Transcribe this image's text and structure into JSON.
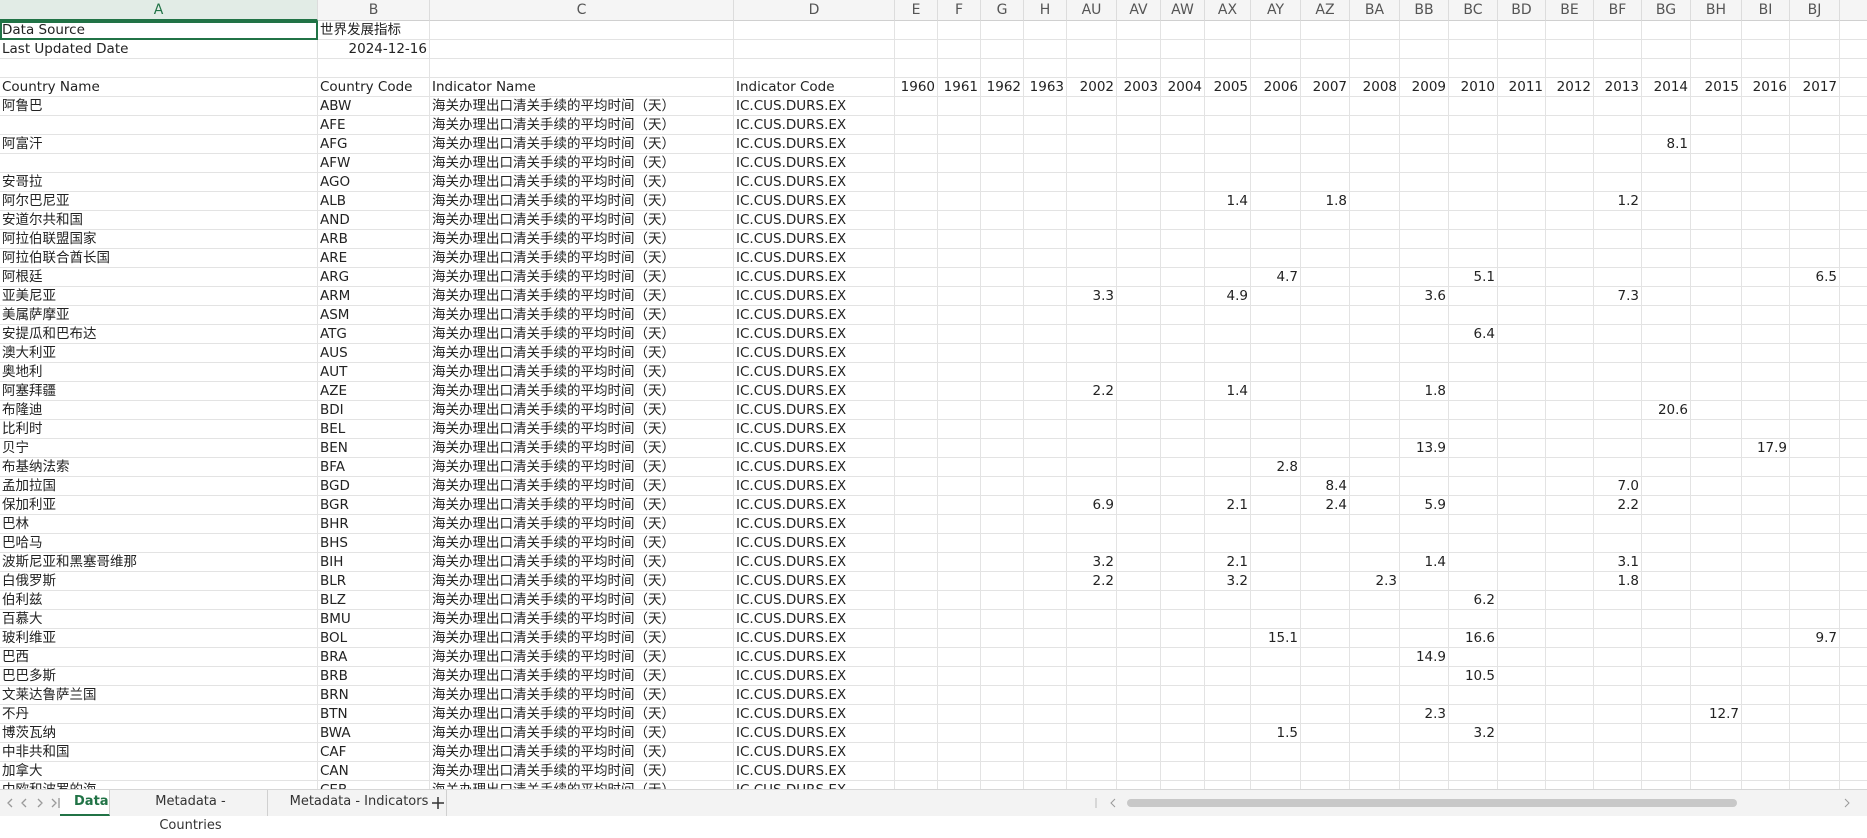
{
  "columns": [
    "A",
    "B",
    "C",
    "D",
    "E",
    "F",
    "G",
    "H",
    "AU",
    "AV",
    "AW",
    "AX",
    "AY",
    "AZ",
    "BA",
    "BB",
    "BC",
    "BD",
    "BE",
    "BF",
    "BG",
    "BH",
    "BI",
    "BJ"
  ],
  "meta": [
    {
      "label": "Data Source",
      "value": "世界发展指标"
    },
    {
      "label": "Last Updated Date",
      "value": "2024-12-16"
    }
  ],
  "header": {
    "country_name": "Country Name",
    "country_code": "Country Code",
    "indicator_name": "Indicator Name",
    "indicator_code": "Indicator Code",
    "years": [
      1960,
      1961,
      1962,
      1963,
      2002,
      2003,
      2004,
      2005,
      2006,
      2007,
      2008,
      2009,
      2010,
      2011,
      2012,
      2013,
      2014,
      2015,
      2016,
      2017
    ]
  },
  "rows": [
    {
      "name": "阿鲁巴",
      "code": "ABW",
      "indicator": "海关办理出口清关手续的平均时间（天）",
      "indicator_code": "IC.CUS.DURS.EX",
      "values": {}
    },
    {
      "code": "AFE",
      "indicator": "海关办理出口清关手续的平均时间（天）",
      "indicator_code": "IC.CUS.DURS.EX",
      "values": {}
    },
    {
      "name": "阿富汗",
      "code": "AFG",
      "indicator": "海关办理出口清关手续的平均时间（天）",
      "indicator_code": "IC.CUS.DURS.EX",
      "values": {
        "2014": "8.1"
      }
    },
    {
      "code": "AFW",
      "indicator": "海关办理出口清关手续的平均时间（天）",
      "indicator_code": "IC.CUS.DURS.EX",
      "values": {}
    },
    {
      "name": "安哥拉",
      "code": "AGO",
      "indicator": "海关办理出口清关手续的平均时间（天）",
      "indicator_code": "IC.CUS.DURS.EX",
      "values": {}
    },
    {
      "name": "阿尔巴尼亚",
      "code": "ALB",
      "indicator": "海关办理出口清关手续的平均时间（天）",
      "indicator_code": "IC.CUS.DURS.EX",
      "values": {
        "2005": "1.4",
        "2007": "1.8",
        "2013": "1.2"
      }
    },
    {
      "name": "安道尔共和国",
      "code": "AND",
      "indicator": "海关办理出口清关手续的平均时间（天）",
      "indicator_code": "IC.CUS.DURS.EX",
      "values": {}
    },
    {
      "name": "阿拉伯联盟国家",
      "code": "ARB",
      "indicator": "海关办理出口清关手续的平均时间（天）",
      "indicator_code": "IC.CUS.DURS.EX",
      "values": {}
    },
    {
      "name": "阿拉伯联合酋长国",
      "code": "ARE",
      "indicator": "海关办理出口清关手续的平均时间（天）",
      "indicator_code": "IC.CUS.DURS.EX",
      "values": {}
    },
    {
      "name": "阿根廷",
      "code": "ARG",
      "indicator": "海关办理出口清关手续的平均时间（天）",
      "indicator_code": "IC.CUS.DURS.EX",
      "values": {
        "2006": "4.7",
        "2010": "5.1",
        "2017": "6.5"
      }
    },
    {
      "name": "亚美尼亚",
      "code": "ARM",
      "indicator": "海关办理出口清关手续的平均时间（天）",
      "indicator_code": "IC.CUS.DURS.EX",
      "values": {
        "2002": "3.3",
        "2005": "4.9",
        "2009": "3.6",
        "2013": "7.3"
      }
    },
    {
      "name": "美属萨摩亚",
      "code": "ASM",
      "indicator": "海关办理出口清关手续的平均时间（天）",
      "indicator_code": "IC.CUS.DURS.EX",
      "values": {}
    },
    {
      "name": "安提瓜和巴布达",
      "code": "ATG",
      "indicator": "海关办理出口清关手续的平均时间（天）",
      "indicator_code": "IC.CUS.DURS.EX",
      "values": {
        "2010": "6.4"
      }
    },
    {
      "name": "澳大利亚",
      "code": "AUS",
      "indicator": "海关办理出口清关手续的平均时间（天）",
      "indicator_code": "IC.CUS.DURS.EX",
      "values": {}
    },
    {
      "name": "奥地利",
      "code": "AUT",
      "indicator": "海关办理出口清关手续的平均时间（天）",
      "indicator_code": "IC.CUS.DURS.EX",
      "values": {}
    },
    {
      "name": "阿塞拜疆",
      "code": "AZE",
      "indicator": "海关办理出口清关手续的平均时间（天）",
      "indicator_code": "IC.CUS.DURS.EX",
      "values": {
        "2002": "2.2",
        "2005": "1.4",
        "2009": "1.8"
      }
    },
    {
      "name": "布隆迪",
      "code": "BDI",
      "indicator": "海关办理出口清关手续的平均时间（天）",
      "indicator_code": "IC.CUS.DURS.EX",
      "values": {
        "2014": "20.6"
      }
    },
    {
      "name": "比利时",
      "code": "BEL",
      "indicator": "海关办理出口清关手续的平均时间（天）",
      "indicator_code": "IC.CUS.DURS.EX",
      "values": {}
    },
    {
      "name": "贝宁",
      "code": "BEN",
      "indicator": "海关办理出口清关手续的平均时间（天）",
      "indicator_code": "IC.CUS.DURS.EX",
      "values": {
        "2009": "13.9",
        "2016": "17.9"
      }
    },
    {
      "name": "布基纳法索",
      "code": "BFA",
      "indicator": "海关办理出口清关手续的平均时间（天）",
      "indicator_code": "IC.CUS.DURS.EX",
      "values": {
        "2006": "2.8"
      }
    },
    {
      "name": "孟加拉国",
      "code": "BGD",
      "indicator": "海关办理出口清关手续的平均时间（天）",
      "indicator_code": "IC.CUS.DURS.EX",
      "values": {
        "2007": "8.4",
        "2013": "7.0"
      }
    },
    {
      "name": "保加利亚",
      "code": "BGR",
      "indicator": "海关办理出口清关手续的平均时间（天）",
      "indicator_code": "IC.CUS.DURS.EX",
      "values": {
        "2002": "6.9",
        "2005": "2.1",
        "2007": "2.4",
        "2009": "5.9",
        "2013": "2.2"
      }
    },
    {
      "name": "巴林",
      "code": "BHR",
      "indicator": "海关办理出口清关手续的平均时间（天）",
      "indicator_code": "IC.CUS.DURS.EX",
      "values": {}
    },
    {
      "name": "巴哈马",
      "code": "BHS",
      "indicator": "海关办理出口清关手续的平均时间（天）",
      "indicator_code": "IC.CUS.DURS.EX",
      "values": {}
    },
    {
      "name": "波斯尼亚和黑塞哥维那",
      "code": "BIH",
      "indicator": "海关办理出口清关手续的平均时间（天）",
      "indicator_code": "IC.CUS.DURS.EX",
      "values": {
        "2002": "3.2",
        "2005": "2.1",
        "2009": "1.4",
        "2013": "3.1"
      }
    },
    {
      "name": "白俄罗斯",
      "code": "BLR",
      "indicator": "海关办理出口清关手续的平均时间（天）",
      "indicator_code": "IC.CUS.DURS.EX",
      "values": {
        "2002": "2.2",
        "2005": "3.2",
        "2008": "2.3",
        "2013": "1.8"
      }
    },
    {
      "name": "伯利兹",
      "code": "BLZ",
      "indicator": "海关办理出口清关手续的平均时间（天）",
      "indicator_code": "IC.CUS.DURS.EX",
      "values": {
        "2010": "6.2"
      }
    },
    {
      "name": "百慕大",
      "code": "BMU",
      "indicator": "海关办理出口清关手续的平均时间（天）",
      "indicator_code": "IC.CUS.DURS.EX",
      "values": {}
    },
    {
      "name": "玻利维亚",
      "code": "BOL",
      "indicator": "海关办理出口清关手续的平均时间（天）",
      "indicator_code": "IC.CUS.DURS.EX",
      "values": {
        "2006": "15.1",
        "2010": "16.6",
        "2017": "9.7"
      }
    },
    {
      "name": "巴西",
      "code": "BRA",
      "indicator": "海关办理出口清关手续的平均时间（天）",
      "indicator_code": "IC.CUS.DURS.EX",
      "values": {
        "2009": "14.9"
      }
    },
    {
      "name": "巴巴多斯",
      "code": "BRB",
      "indicator": "海关办理出口清关手续的平均时间（天）",
      "indicator_code": "IC.CUS.DURS.EX",
      "values": {
        "2010": "10.5"
      }
    },
    {
      "name": "文莱达鲁萨兰国",
      "code": "BRN",
      "indicator": "海关办理出口清关手续的平均时间（天）",
      "indicator_code": "IC.CUS.DURS.EX",
      "values": {}
    },
    {
      "name": "不丹",
      "code": "BTN",
      "indicator": "海关办理出口清关手续的平均时间（天）",
      "indicator_code": "IC.CUS.DURS.EX",
      "values": {
        "2009": "2.3",
        "2015": "12.7"
      }
    },
    {
      "name": "博茨瓦纳",
      "code": "BWA",
      "indicator": "海关办理出口清关手续的平均时间（天）",
      "indicator_code": "IC.CUS.DURS.EX",
      "values": {
        "2006": "1.5",
        "2010": "3.2"
      }
    },
    {
      "name": "中非共和国",
      "code": "CAF",
      "indicator": "海关办理出口清关手续的平均时间（天）",
      "indicator_code": "IC.CUS.DURS.EX",
      "values": {}
    },
    {
      "name": "加拿大",
      "code": "CAN",
      "indicator": "海关办理出口清关手续的平均时间（天）",
      "indicator_code": "IC.CUS.DURS.EX",
      "values": {}
    },
    {
      "name": "中欧和波罗的海",
      "code": "CEB",
      "indicator": "海关办理出口清关手续的平均时间（天）",
      "indicator_code": "IC.CUS.DURS.EX",
      "values": {}
    }
  ],
  "tabs": [
    "Data",
    "Metadata - Countries",
    "Metadata - Indicators"
  ]
}
